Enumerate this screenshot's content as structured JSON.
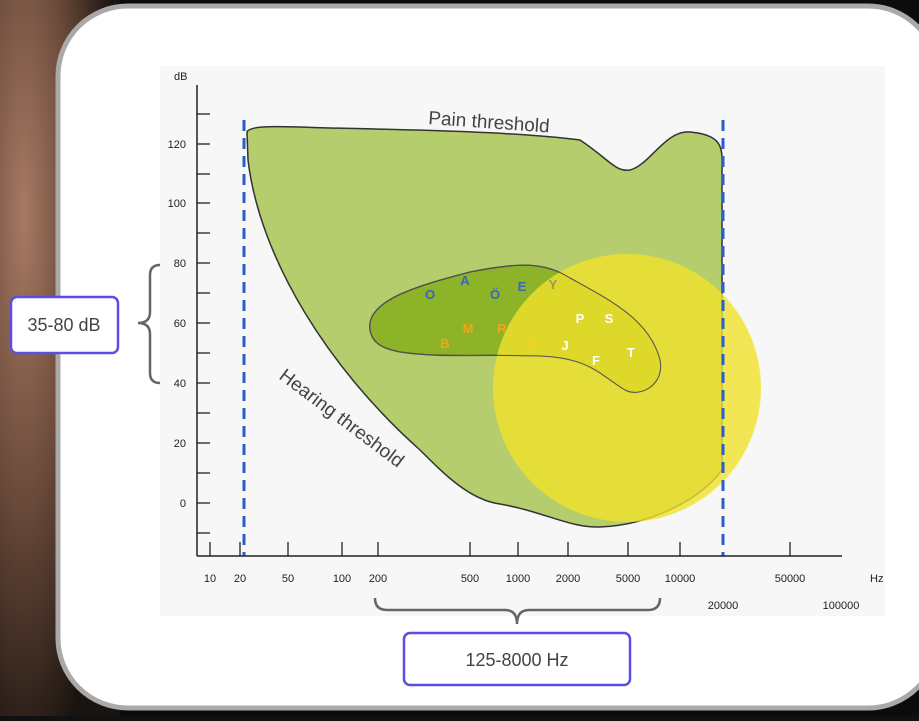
{
  "axes": {
    "y_unit": "dB",
    "y_ticks": [
      0,
      20,
      40,
      60,
      80,
      100,
      120
    ],
    "x_unit": "Hz",
    "x_ticks": [
      10,
      20,
      50,
      100,
      200,
      500,
      1000,
      2000,
      5000,
      10000,
      50000
    ],
    "x_ticks_lower": [
      20000,
      100000
    ]
  },
  "labels": {
    "pain": "Pain threshold",
    "hearing": "Hearing threshold"
  },
  "phonemes": [
    "O",
    "A",
    "Ö",
    "E",
    "Y",
    "M",
    "R",
    "B",
    "V",
    "P",
    "S",
    "J",
    "F",
    "T"
  ],
  "callouts": {
    "level": "35-80 dB",
    "frequency": "125-8000 Hz"
  }
}
